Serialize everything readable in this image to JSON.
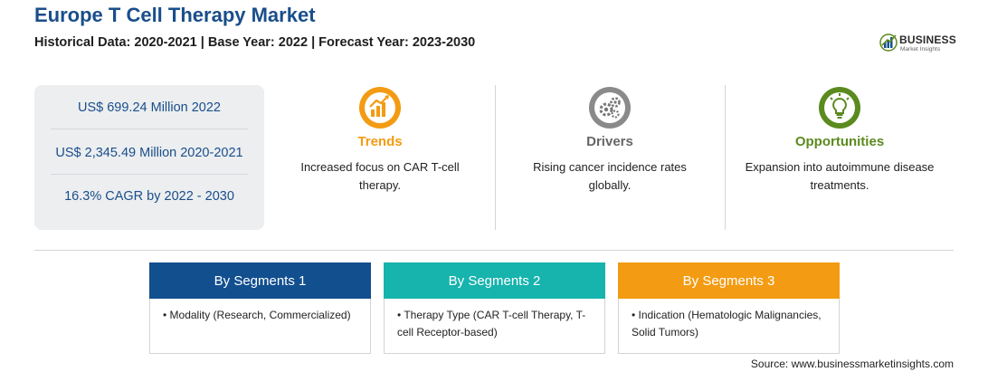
{
  "title": "Europe T Cell Therapy Market",
  "subtitle": "Historical Data: 2020-2021 | Base Year: 2022 | Forecast Year: 2023-2030",
  "logo": {
    "name": "BUSINESS",
    "tagline": "Market Insights"
  },
  "stats": [
    "US$ 699.24 Million 2022",
    "US$ 2,345.49 Million 2020-2021",
    "16.3% CAGR by 2022 - 2030"
  ],
  "highlights": {
    "trends": {
      "heading": "Trends",
      "text": "Increased focus on CAR T-cell therapy.",
      "icon": "trend-chart-icon"
    },
    "drivers": {
      "heading": "Drivers",
      "text": "Rising cancer incidence rates globally.",
      "icon": "gears-icon"
    },
    "opportunities": {
      "heading": "Opportunities",
      "text": "Expansion into autoimmune disease treatments.",
      "icon": "lightbulb-icon"
    }
  },
  "segments": [
    {
      "label": "By Segments 1",
      "item": "• Modality (Research, Commercialized)"
    },
    {
      "label": "By Segments 2",
      "item": "• Therapy Type (CAR T-cell Therapy, T-cell Receptor-based)"
    },
    {
      "label": "By Segments 3",
      "item": "• Indication (Hematologic Malignancies, Solid Tumors)"
    }
  ],
  "colors": {
    "title": "#1a4e8a",
    "trends": "#f39b12",
    "drivers": "#666666",
    "opportunities": "#5b8a1e",
    "segment1": "#124f8f",
    "segment2": "#17b3ad",
    "segment3": "#f39b12"
  },
  "source": "Source: www.businessmarketinsights.com"
}
